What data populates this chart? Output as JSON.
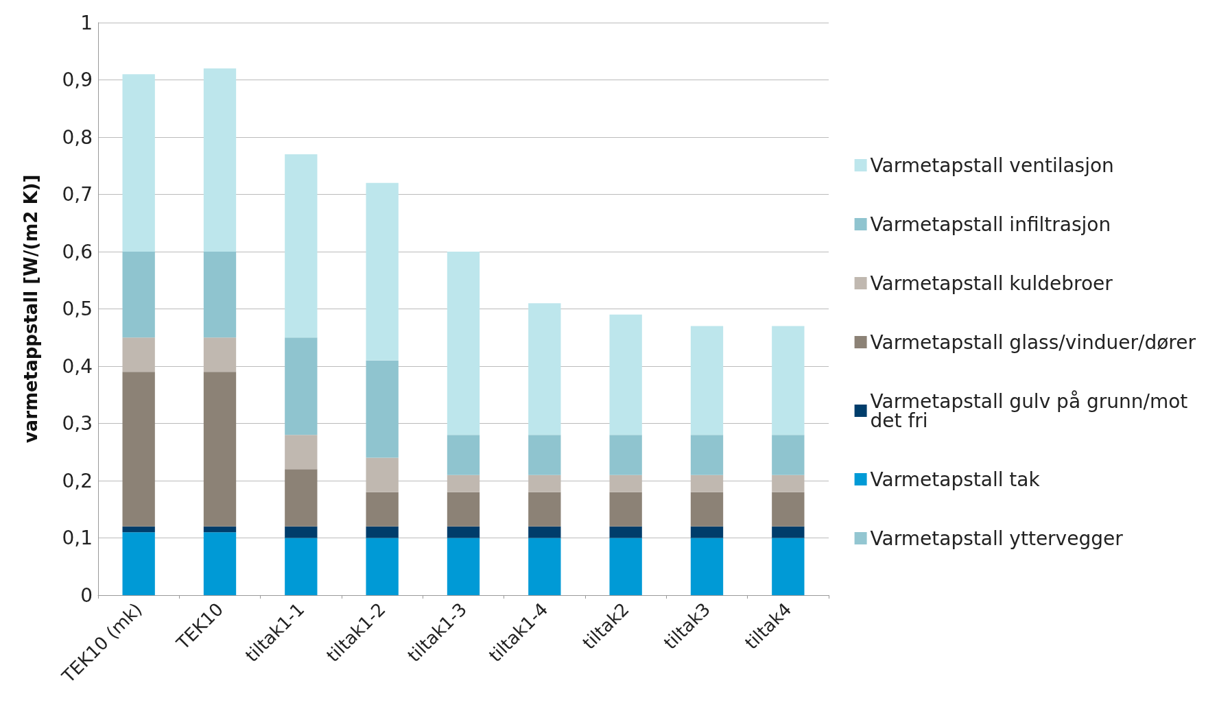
{
  "chart_data": {
    "type": "bar",
    "stacked": true,
    "ylabel": "varmetappstall [W/(m2 K)]",
    "categories": [
      "TEK10 (mk)",
      "TEK10",
      "tiltak1-1",
      "tiltak1-2",
      "tiltak1-3",
      "tiltak1-4",
      "tiltak2",
      "tiltak3",
      "tiltak4"
    ],
    "series": [
      {
        "name": "Varmetapstall yttervegger",
        "color": "#93c6d1",
        "values": [
          0,
          0,
          0,
          0,
          0,
          0,
          0,
          0,
          0
        ]
      },
      {
        "name": "Varmetapstall tak",
        "color": "#009ad6",
        "values": [
          0.11,
          0.11,
          0.1,
          0.1,
          0.1,
          0.1,
          0.1,
          0.1,
          0.1
        ]
      },
      {
        "name": "Varmetapstall gulv på grunn/mot det fri",
        "color": "#003d6b",
        "values": [
          0.01,
          0.01,
          0.02,
          0.02,
          0.02,
          0.02,
          0.02,
          0.02,
          0.02
        ]
      },
      {
        "name": "Varmetapstall glass/vinduer/dører",
        "color": "#8c8276",
        "values": [
          0.27,
          0.27,
          0.1,
          0.06,
          0.06,
          0.06,
          0.06,
          0.06,
          0.06
        ]
      },
      {
        "name": "Varmetapstall kuldebroer",
        "color": "#c0b8b0",
        "values": [
          0.06,
          0.06,
          0.06,
          0.06,
          0.03,
          0.03,
          0.03,
          0.03,
          0.03
        ]
      },
      {
        "name": "Varmetapstall infiltrasjon",
        "color": "#8fc4cf",
        "values": [
          0.15,
          0.15,
          0.17,
          0.17,
          0.07,
          0.07,
          0.07,
          0.07,
          0.07
        ]
      },
      {
        "name": "Varmetapstall ventilasjon",
        "color": "#bde6ec",
        "values": [
          0.31,
          0.32,
          0.32,
          0.31,
          0.32,
          0.23,
          0.21,
          0.19,
          0.19
        ]
      }
    ],
    "ylim": [
      0,
      1
    ],
    "yticks": [
      0,
      {
        "value": 0.1,
        "label": "0,1"
      },
      {
        "value": 0.2,
        "label": "0,2"
      },
      {
        "value": 0.3,
        "label": "0,3"
      },
      {
        "value": 0.4,
        "label": "0,4"
      },
      {
        "value": 0.5,
        "label": "0,5"
      },
      {
        "value": 0.6,
        "label": "0,6"
      },
      {
        "value": 0.7,
        "label": "0,7"
      },
      {
        "value": 0.8,
        "label": "0,8"
      },
      {
        "value": 0.9,
        "label": "0,9"
      },
      1
    ],
    "grid": "y",
    "legend": "right"
  }
}
